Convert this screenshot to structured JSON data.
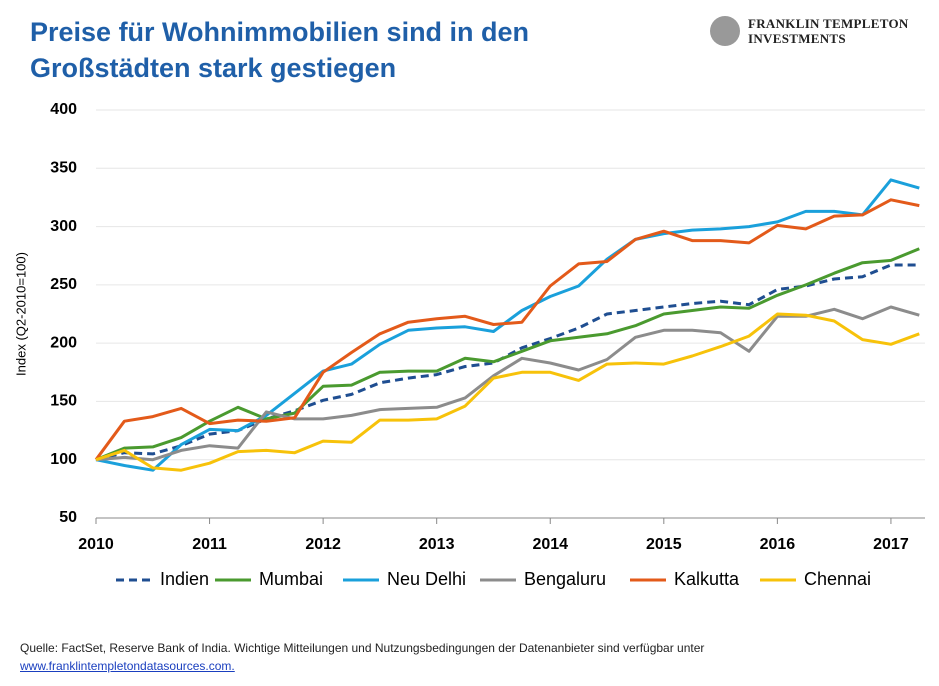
{
  "chart_data": {
    "type": "line",
    "title": "Preise für Wohnimmobilien sind in den Großstädten stark gestiegen",
    "y_label": "Index  (Q2-2010=100)",
    "x": [
      2010,
      2010.25,
      2010.5,
      2010.75,
      2011,
      2011.25,
      2011.5,
      2011.75,
      2012,
      2012.25,
      2012.5,
      2012.75,
      2013,
      2013.25,
      2013.5,
      2013.75,
      2014,
      2014.25,
      2014.5,
      2014.75,
      2015,
      2015.25,
      2015.5,
      2015.75,
      2016,
      2016.25,
      2016.5,
      2016.75,
      2017,
      2017.25
    ],
    "xlim": [
      2010,
      2017.3
    ],
    "xticks": [
      2010,
      2011,
      2012,
      2013,
      2014,
      2015,
      2016,
      2017
    ],
    "ylim": [
      50,
      400
    ],
    "yticks": [
      50,
      100,
      150,
      200,
      250,
      300,
      350,
      400
    ],
    "grid": true,
    "series": [
      {
        "name": "Indien",
        "color": "#1f4e91",
        "dashed": true,
        "values": [
          100,
          106,
          105,
          112,
          122,
          125,
          135,
          142,
          151,
          156,
          166,
          170,
          173,
          180,
          183,
          196,
          204,
          213,
          225,
          228,
          231,
          234,
          236,
          233,
          246,
          249,
          255,
          257,
          267,
          267
        ]
      },
      {
        "name": "Mumbai",
        "color": "#4a9a2f",
        "values": [
          100,
          110,
          111,
          119,
          133,
          145,
          135,
          140,
          163,
          164,
          175,
          176,
          176,
          187,
          184,
          193,
          202,
          205,
          208,
          215,
          225,
          228,
          231,
          230,
          241,
          250,
          260,
          269,
          271,
          281
        ]
      },
      {
        "name": "Neu Delhi",
        "color": "#1aa0db",
        "values": [
          100,
          95,
          91,
          113,
          126,
          125,
          138,
          157,
          176,
          182,
          199,
          211,
          213,
          214,
          210,
          228,
          240,
          249,
          272,
          289,
          294,
          297,
          298,
          300,
          304,
          313,
          313,
          310,
          340,
          333
        ]
      },
      {
        "name": "Bengaluru",
        "color": "#8c8c8c",
        "values": [
          100,
          102,
          100,
          108,
          112,
          110,
          141,
          135,
          135,
          138,
          143,
          144,
          145,
          153,
          172,
          187,
          183,
          177,
          186,
          205,
          211,
          211,
          209,
          193,
          223,
          223,
          229,
          221,
          231,
          224
        ]
      },
      {
        "name": "Kalkutta",
        "color": "#e35a1a",
        "values": [
          100,
          133,
          137,
          144,
          131,
          134,
          133,
          136,
          175,
          192,
          208,
          218,
          221,
          223,
          216,
          218,
          249,
          268,
          270,
          289,
          296,
          288,
          288,
          286,
          301,
          298,
          309,
          310,
          323,
          318
        ]
      },
      {
        "name": "Chennai",
        "color": "#f7c20a",
        "values": [
          100,
          108,
          93,
          91,
          97,
          107,
          108,
          106,
          116,
          115,
          134,
          134,
          135,
          146,
          170,
          175,
          175,
          168,
          182,
          183,
          182,
          189,
          197,
          206,
          225,
          224,
          219,
          203,
          199,
          208
        ]
      }
    ]
  },
  "logo": {
    "line1": "FRANKLIN TEMPLETON",
    "line2": "INVESTMENTS"
  },
  "source": {
    "text": "Quelle: FactSet, Reserve Bank of India. Wichtige Mitteilungen und Nutzungsbedingungen der Datenanbieter sind verfügbar unter",
    "link": "www.franklintempletondatasources.com."
  }
}
